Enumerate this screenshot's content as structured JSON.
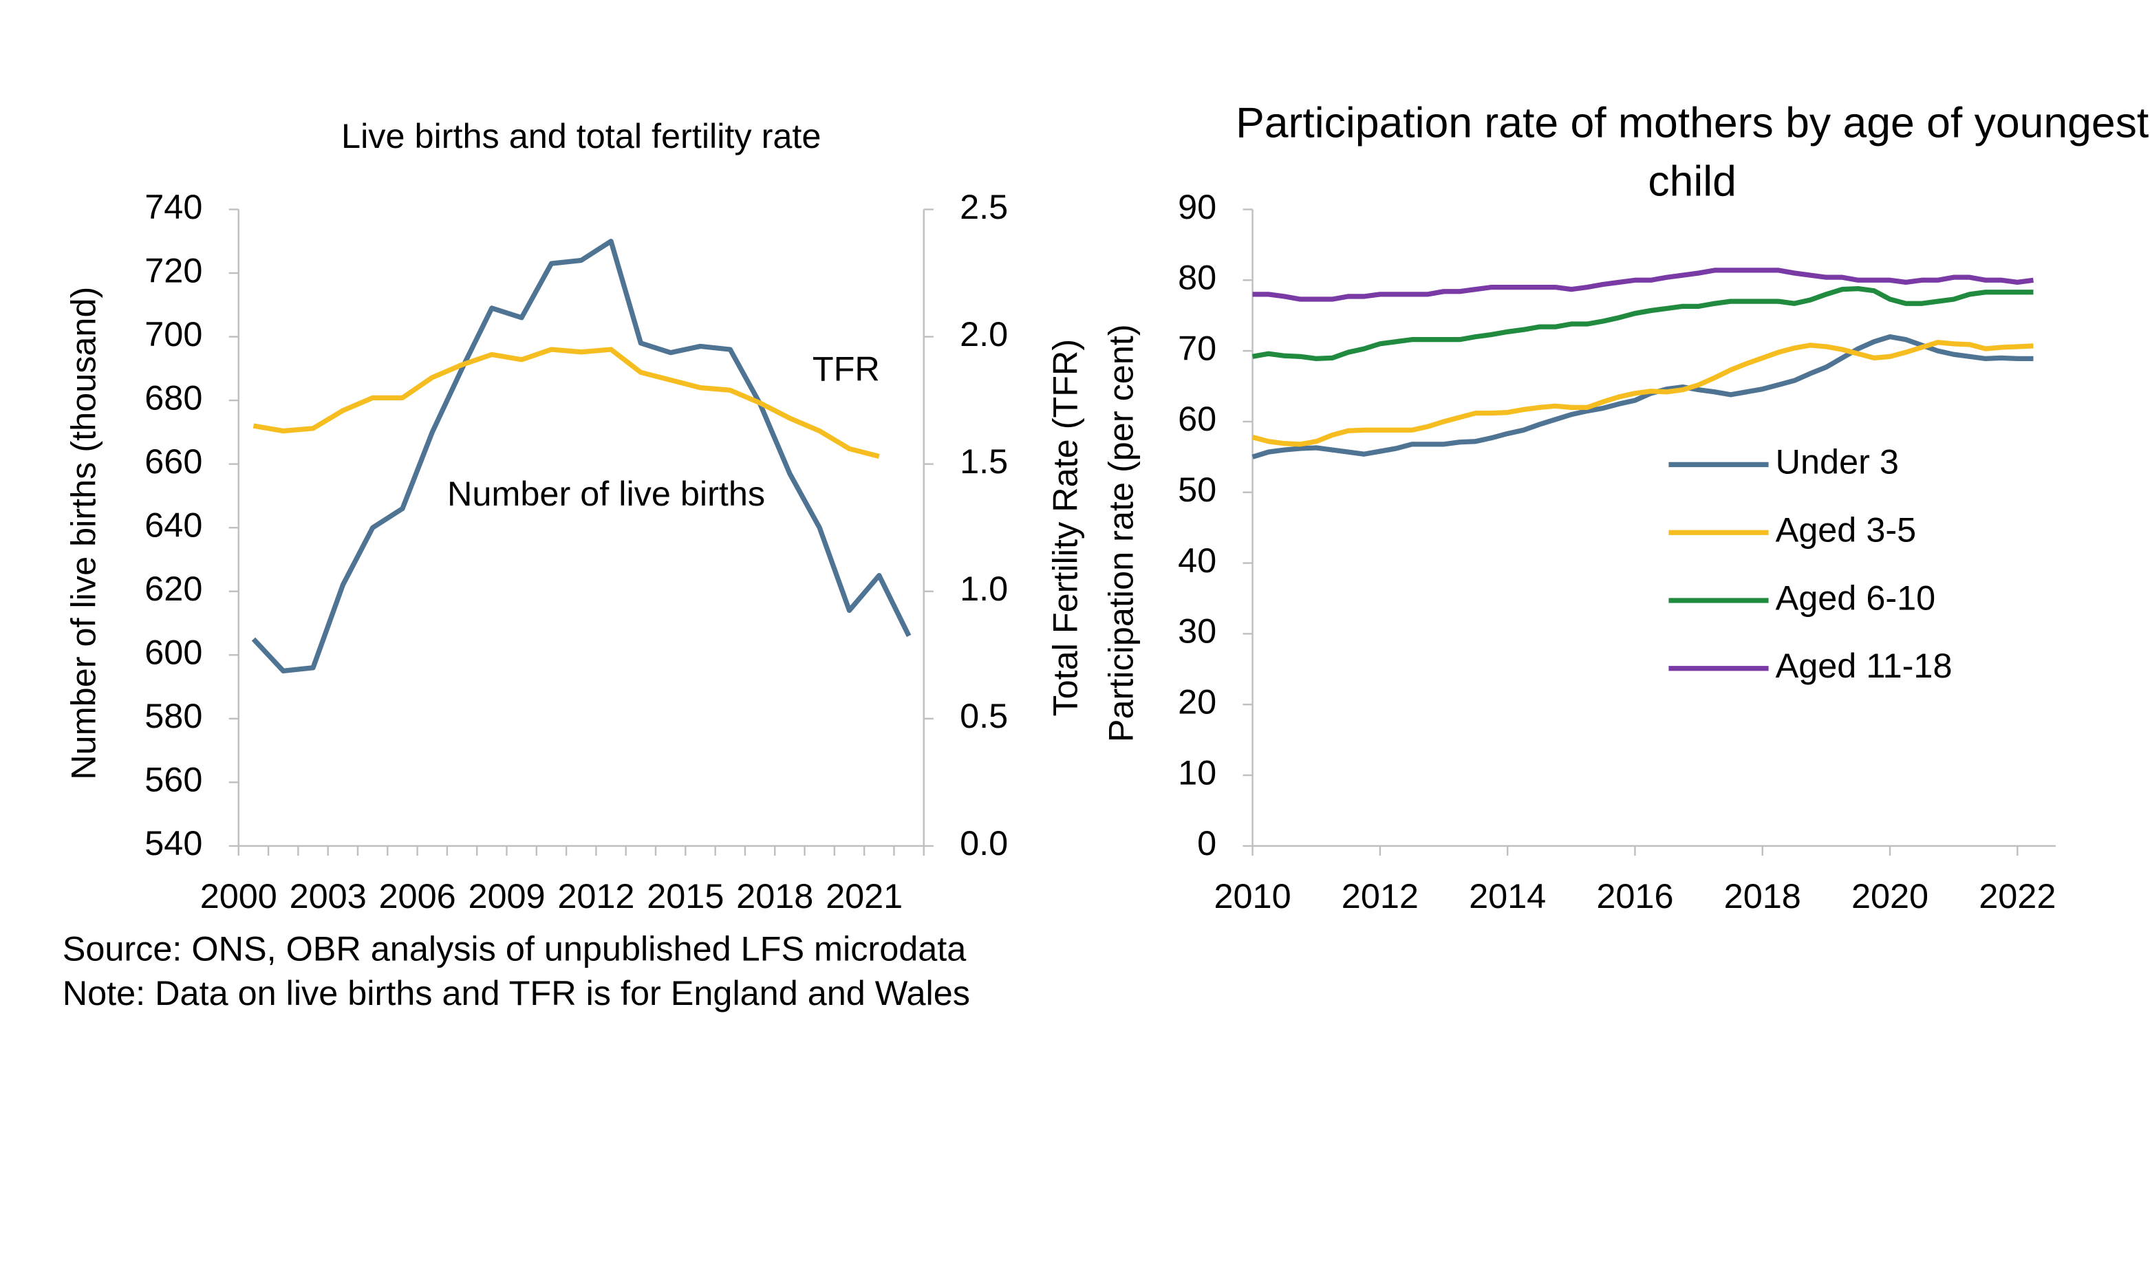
{
  "chart_data": [
    {
      "type": "line",
      "title": "Live births and total fertility rate",
      "y_label": "Number of live births (thousand)",
      "y2_label": "Total Fertility Rate (TFR)",
      "categories": [
        "2000",
        null,
        null,
        "2003",
        null,
        null,
        "2006",
        null,
        null,
        "2009",
        null,
        null,
        "2012",
        null,
        null,
        "2015",
        null,
        null,
        "2018",
        null,
        null,
        "2021",
        null
      ],
      "series": [
        {
          "name": "Number of live births",
          "color": "#4e7393",
          "values": [
            605,
            595,
            596,
            622,
            640,
            646,
            670,
            690,
            709,
            706,
            723,
            724,
            730,
            698,
            695,
            697,
            696,
            679,
            657,
            640,
            614,
            625,
            606
          ]
        },
        {
          "name": "TFR",
          "color": "#f5bd1f",
          "axis": "y2",
          "values": [
            1.65,
            1.63,
            1.64,
            1.71,
            1.76,
            1.76,
            1.84,
            1.89,
            1.93,
            1.91,
            1.95,
            1.94,
            1.95,
            1.86,
            1.83,
            1.8,
            1.79,
            1.74,
            1.68,
            1.63,
            1.56,
            1.53,
            null
          ]
        }
      ],
      "legend": "inline",
      "grid": false,
      "ylim": [
        540,
        740
      ],
      "yticks": [
        540,
        560,
        580,
        600,
        620,
        640,
        660,
        680,
        700,
        720,
        740
      ],
      "y2lim": [
        0,
        2.5
      ],
      "y2ticks": [
        {
          "value": 0,
          "label": "0.0"
        },
        0.5,
        {
          "value": 1,
          "label": "1.0"
        },
        1.5,
        {
          "value": 2,
          "label": "2.0"
        },
        2.5
      ]
    },
    {
      "type": "line",
      "title": "Participation rate of mothers by age of youngest child",
      "y_label": "Participation rate (per cent)",
      "x": [
        2010,
        2010.25,
        2010.5,
        2010.75,
        2011,
        2011.25,
        2011.5,
        2011.75,
        2012,
        2012.25,
        2012.5,
        2012.75,
        2013,
        2013.25,
        2013.5,
        2013.75,
        2014,
        2014.25,
        2014.5,
        2014.75,
        2015,
        2015.25,
        2015.5,
        2015.75,
        2016,
        2016.25,
        2016.5,
        2016.75,
        2017,
        2017.25,
        2017.5,
        2017.75,
        2018,
        2018.25,
        2018.5,
        2018.75,
        2019,
        2019.25,
        2019.5,
        2019.75,
        2020,
        2020.25,
        2020.5,
        2020.75,
        2021,
        2021.25,
        2021.5,
        2021.75,
        2022,
        2022.25
      ],
      "series": [
        {
          "name": "Under 3",
          "color": "#4e7393",
          "values": [
            55,
            55.7,
            56,
            56.2,
            56.3,
            56,
            55.7,
            55.4,
            55.8,
            56.2,
            56.8,
            56.8,
            56.8,
            57.1,
            57.2,
            57.7,
            58.3,
            58.8,
            59.6,
            60.3,
            61,
            61.5,
            61.9,
            62.5,
            63,
            64,
            64.6,
            64.9,
            64.5,
            64.2,
            63.8,
            64.2,
            64.6,
            65.2,
            65.8,
            66.8,
            67.7,
            69,
            70.3,
            71.3,
            72,
            71.6,
            70.8,
            70,
            69.5,
            69.2,
            68.9,
            69,
            68.9,
            68.9
          ]
        },
        {
          "name": "Aged 3-5",
          "color": "#f5bd1f",
          "values": [
            57.8,
            57.2,
            56.9,
            56.8,
            57.2,
            58.1,
            58.7,
            58.8,
            58.8,
            58.8,
            58.8,
            59.3,
            60,
            60.6,
            61.2,
            61.2,
            61.3,
            61.7,
            62,
            62.2,
            62,
            62,
            62.8,
            63.5,
            64,
            64.3,
            64.2,
            64.5,
            65.2,
            66.2,
            67.3,
            68.2,
            69,
            69.8,
            70.4,
            70.8,
            70.6,
            70.2,
            69.6,
            69,
            69.2,
            69.8,
            70.5,
            71.2,
            71,
            70.9,
            70.3,
            70.5,
            70.6,
            70.7
          ]
        },
        {
          "name": "Aged 6-10",
          "color": "#208a3e",
          "values": [
            69.2,
            69.6,
            69.3,
            69.2,
            68.9,
            69,
            69.8,
            70.3,
            71,
            71.3,
            71.6,
            71.6,
            71.6,
            71.6,
            72,
            72.3,
            72.7,
            73,
            73.4,
            73.4,
            73.8,
            73.8,
            74.2,
            74.7,
            75.3,
            75.7,
            76,
            76.3,
            76.3,
            76.7,
            77,
            77,
            77,
            77,
            76.7,
            77.2,
            78,
            78.7,
            78.8,
            78.5,
            77.3,
            76.7,
            76.7,
            77,
            77.3,
            78,
            78.3,
            78.3,
            78.3,
            78.3
          ]
        },
        {
          "name": "Aged 11-18",
          "color": "#7a3aa6",
          "values": [
            78,
            78,
            77.7,
            77.3,
            77.3,
            77.3,
            77.7,
            77.7,
            78,
            78,
            78,
            78,
            78.4,
            78.4,
            78.7,
            79,
            79,
            79,
            79,
            79,
            78.7,
            79,
            79.4,
            79.7,
            80,
            80,
            80.4,
            80.7,
            81,
            81.4,
            81.4,
            81.4,
            81.4,
            81.4,
            81,
            80.7,
            80.4,
            80.4,
            80,
            80,
            80,
            79.7,
            80,
            80,
            80.4,
            80.4,
            80,
            80,
            79.7,
            80
          ]
        }
      ],
      "legend": "right",
      "grid": false,
      "xlim": [
        2010,
        2022.6
      ],
      "xticks": [
        2010,
        2012,
        2014,
        2016,
        2018,
        2020,
        2022
      ],
      "ylim": [
        0,
        90
      ],
      "yticks": [
        0,
        10,
        20,
        30,
        40,
        50,
        60,
        70,
        80,
        90
      ]
    }
  ],
  "footer": [
    "Source: ONS, OBR analysis of unpublished LFS microdata",
    "Note: Data on live births and TFR is for England and Wales"
  ]
}
